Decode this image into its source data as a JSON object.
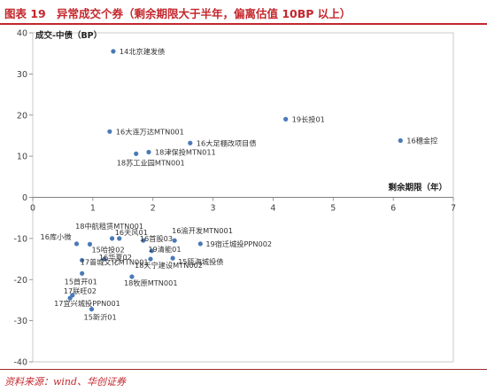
{
  "header": {
    "figure_label": "图表 19",
    "title": "异常成交个券（剩余期限大于半年，偏离估值 10BP 以上）"
  },
  "footer": {
    "source": "资料来源：wind、华创证券"
  },
  "colors": {
    "accent": "#c4272d",
    "point": "#4a7ab8",
    "axis": "#808080",
    "gridline": "#d9d9d9",
    "plot_border": "#bfbfbf"
  },
  "chart_data": {
    "type": "scatter",
    "ylabel": "成交-中债（BP）",
    "xlabel": "剩余期限（年）",
    "xlim": [
      0,
      7
    ],
    "ylim": [
      -40,
      40
    ],
    "xticks": [
      0,
      1,
      2,
      3,
      4,
      5,
      6,
      7
    ],
    "yticks": [
      40,
      30,
      20,
      10,
      0,
      -10,
      -20,
      -30,
      -40
    ],
    "grid": false,
    "points": [
      {
        "label": "14北京建发债",
        "x": 1.34,
        "y": 35.5
      },
      {
        "label": "19长投01",
        "x": 4.21,
        "y": 19.0
      },
      {
        "label": "16穗金控",
        "x": 6.12,
        "y": 13.8
      },
      {
        "label": "16大连万达MTN001",
        "x": 1.28,
        "y": 16.0
      },
      {
        "label": "16大足棚改项目债",
        "x": 2.62,
        "y": 13.2
      },
      {
        "label": "18津保投MTN011",
        "x": 1.93,
        "y": 11.0
      },
      {
        "label": "18苏工业园MTN001",
        "x": 1.72,
        "y": 10.6
      },
      {
        "label": "18中航租赁MTN001",
        "x": 1.32,
        "y": -10.0
      },
      {
        "label": "16天风01",
        "x": 1.44,
        "y": -10.0
      },
      {
        "label": "16渝开发MTN001",
        "x": 2.36,
        "y": -10.5
      },
      {
        "label": "16库小微",
        "x": 0.73,
        "y": -11.3
      },
      {
        "label": "16首股03",
        "x": 1.84,
        "y": -10.5
      },
      {
        "label": "19宿迁城投PPN002",
        "x": 2.79,
        "y": -11.3
      },
      {
        "label": "15哈投02",
        "x": 0.95,
        "y": -11.4
      },
      {
        "label": "19清能01",
        "x": 1.98,
        "y": -13.0
      },
      {
        "label": "15瓯海城投债",
        "x": 2.33,
        "y": -14.8
      },
      {
        "label": "16华夏02",
        "x": 1.19,
        "y": -15.0
      },
      {
        "label": "17普城文化MTN001",
        "x": 0.82,
        "y": -15.3
      },
      {
        "label": "18天宁建设MTN002",
        "x": 1.96,
        "y": -15.0
      },
      {
        "label": "18牧原MTN001",
        "x": 1.65,
        "y": -19.3
      },
      {
        "label": "15首开01",
        "x": 0.82,
        "y": -18.5
      },
      {
        "label": "17联旺02",
        "x": 0.66,
        "y": -23.8
      },
      {
        "label": "17宜兴城投PPN001",
        "x": 0.62,
        "y": -24.5
      },
      {
        "label": "15新沂01",
        "x": 0.98,
        "y": -27.2
      }
    ]
  }
}
